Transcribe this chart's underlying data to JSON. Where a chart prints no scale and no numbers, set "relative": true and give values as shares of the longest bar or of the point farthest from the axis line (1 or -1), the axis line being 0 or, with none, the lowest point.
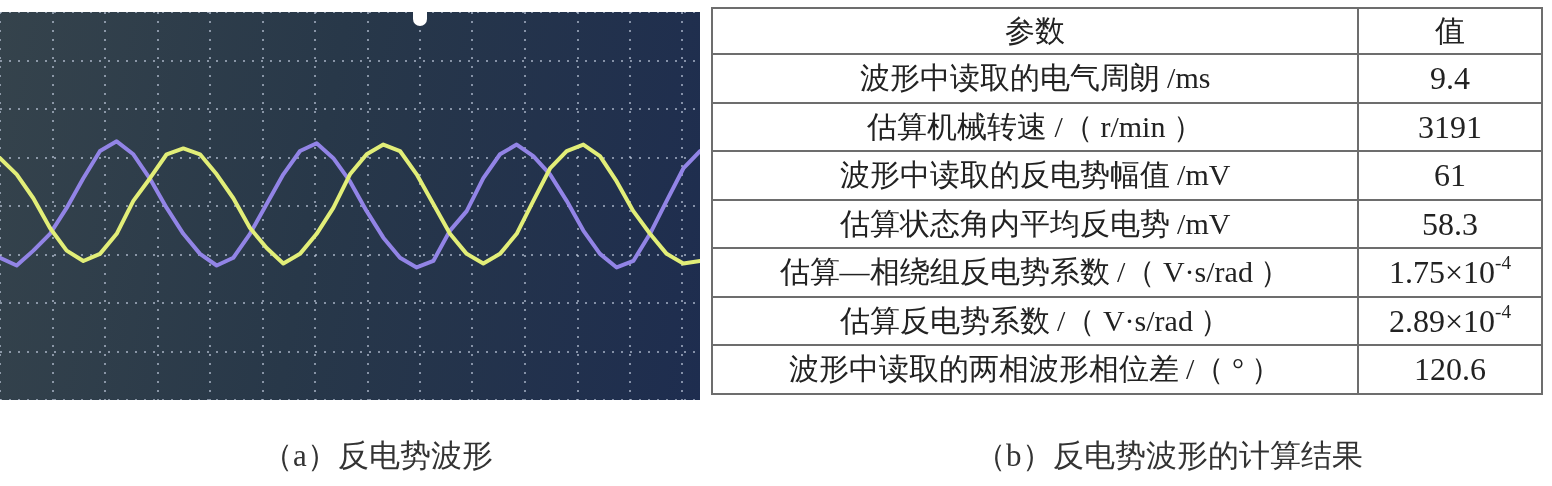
{
  "chart_data": [
    {
      "type": "line",
      "title": "（a）反电势波形",
      "relative": true,
      "grid": true,
      "categories": [
        null,
        null,
        null,
        null,
        null,
        null,
        null,
        null,
        null,
        null,
        null,
        null,
        null,
        null,
        null,
        null,
        null,
        null,
        null,
        null,
        null,
        null,
        null,
        null,
        null,
        null,
        null,
        null,
        null,
        null,
        null,
        null,
        null,
        null,
        null,
        null,
        null,
        null,
        null,
        null,
        null,
        null,
        null
      ],
      "series": [
        {
          "color": "#e2ee78",
          "values": [
            0.74,
            0.49,
            0.12,
            -0.34,
            -0.69,
            -0.85,
            -0.74,
            -0.43,
            0.08,
            0.43,
            0.8,
            0.89,
            0.8,
            0.49,
            0.12,
            -0.34,
            -0.65,
            -0.89,
            -0.74,
            -0.43,
            -0.03,
            0.49,
            0.8,
            0.95,
            0.85,
            0.49,
            0.03,
            -0.43,
            -0.74,
            -0.89,
            -0.74,
            -0.43,
            0.08,
            0.58,
            0.85,
            0.95,
            0.77,
            0.38,
            -0.08,
            -0.43,
            -0.74,
            -0.89,
            -0.85
          ]
        },
        {
          "color": "#9284e6",
          "values": [
            -0.8,
            -0.92,
            -0.69,
            -0.43,
            -0.03,
            0.43,
            0.85,
            1,
            0.8,
            0.42,
            -0.03,
            -0.43,
            -0.74,
            -0.92,
            -0.8,
            -0.43,
            0.03,
            0.49,
            0.85,
            0.97,
            0.74,
            0.38,
            -0.08,
            -0.49,
            -0.8,
            -0.95,
            -0.85,
            -0.38,
            -0.08,
            0.43,
            0.8,
            0.95,
            0.77,
            0.49,
            0.08,
            -0.38,
            -0.74,
            -0.95,
            -0.85,
            -0.43,
            0.08,
            0.58,
            0.85
          ]
        }
      ]
    },
    {
      "type": "other",
      "title": "（b）反电势波形的计算结果",
      "annotations": [
        "参数",
        "值"
      ],
      "categories": [
        "波形中读取的电气周朗 /ms",
        "估算机械转速 /（ r/min ）",
        "波形中读取的反电势幅值 /mV",
        "估算状态角内平均反电势 /mV",
        "估算—相绕组反电势系数 /（ V·s/rad ）",
        "估算反电势系数 /（ V·s/rad ）",
        "波形中读取的两相波形相位差 /（ ° ）"
      ],
      "value_labels": [
        "9.4",
        "3191",
        "61",
        "58.3",
        "1.75×10$^{-4}$",
        "2.89×10$^{-4}$",
        "120.6"
      ]
    }
  ]
}
